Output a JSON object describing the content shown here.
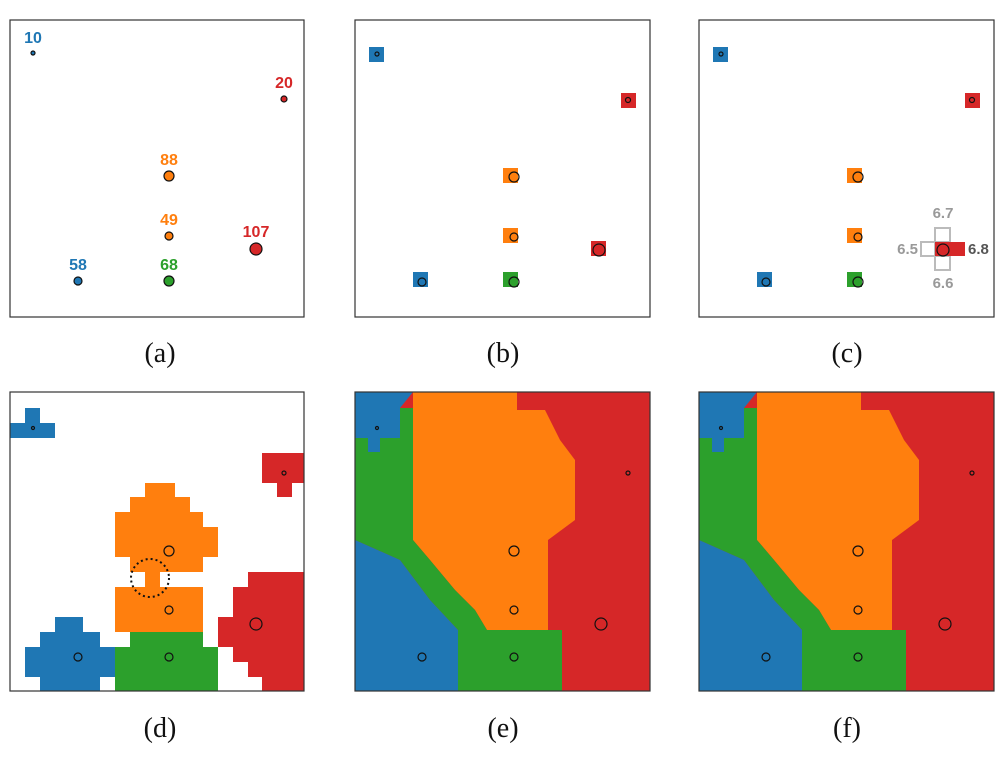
{
  "panel_labels": [
    "(a)",
    "(b)",
    "(c)",
    "(d)",
    "(e)",
    "(f)"
  ],
  "point_labels": [
    "10",
    "20",
    "88",
    "49",
    "107",
    "58",
    "68"
  ],
  "cost_labels": [
    "6.7",
    "6.5",
    "6.8",
    "6.6"
  ]
}
